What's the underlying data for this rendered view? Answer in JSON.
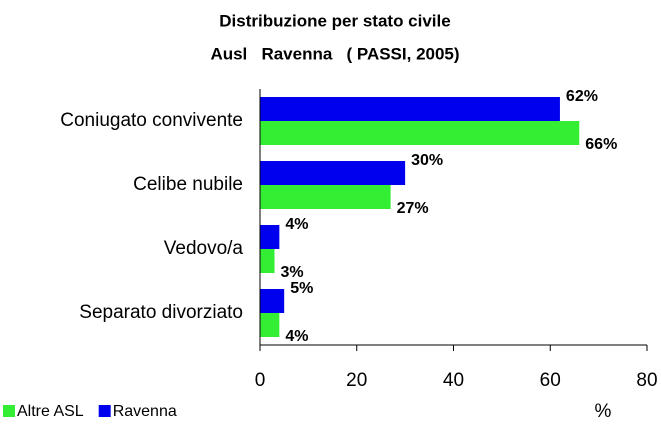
{
  "chart_data": {
    "type": "hbar",
    "title": [
      "Distribuzione per stato civile",
      "Ausl   Ravenna   ( PASSI, 2005)"
    ],
    "categories": [
      "Coniugato convivente",
      "Celibe nubile",
      "Vedovo/a",
      "Separato divorziato"
    ],
    "series": [
      {
        "name": "Altre ASL",
        "color": "#33ee33",
        "values": [
          66,
          27,
          3,
          4
        ],
        "value_labels": [
          "66%",
          "27%",
          "3%",
          "4%"
        ]
      },
      {
        "name": "Ravenna",
        "color": "#0000ee",
        "values": [
          62,
          30,
          4,
          5
        ],
        "value_labels": [
          "62%",
          "30%",
          "4%",
          "5%"
        ]
      }
    ],
    "xlim": [
      0,
      80
    ],
    "xticks": [
      0,
      20,
      40,
      60,
      80
    ],
    "xlabel": "%",
    "grid": false,
    "legend": "bottom-left"
  }
}
